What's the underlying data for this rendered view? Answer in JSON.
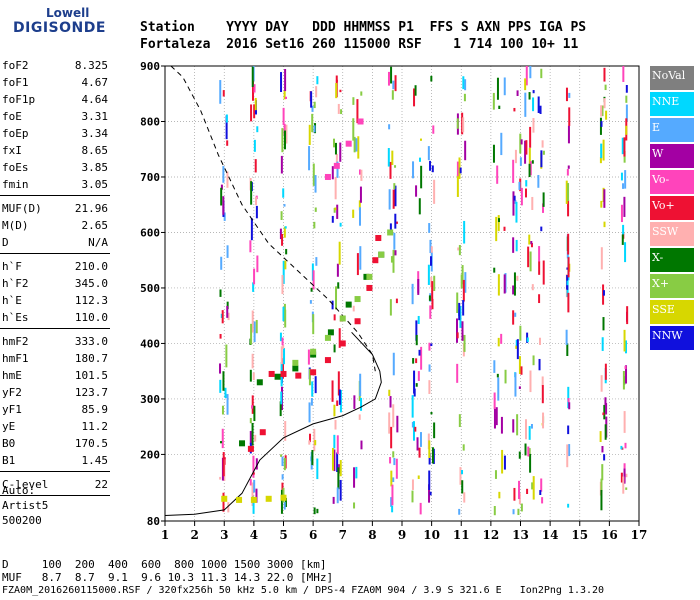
{
  "logo": {
    "line1": "Lowell",
    "line2": "DIGISONDE"
  },
  "header": {
    "row1": "Station    YYYY DAY   DDD HHMMSS P1  FFS S AXN PPS IGA PS",
    "row2": "Fortaleza  2016 Set16 260 115000 RSF    1 714 100 10+ 11"
  },
  "params": {
    "group1": [
      {
        "k": "foF2",
        "v": "8.325"
      },
      {
        "k": "foF1",
        "v": "4.67"
      },
      {
        "k": "foF1p",
        "v": "4.64"
      },
      {
        "k": "foE",
        "v": "3.31"
      },
      {
        "k": "foEp",
        "v": "3.34"
      },
      {
        "k": "fxI",
        "v": "8.65"
      },
      {
        "k": "foEs",
        "v": "3.85"
      },
      {
        "k": "fmin",
        "v": "3.05"
      }
    ],
    "group2": [
      {
        "k": "MUF(D)",
        "v": "21.96"
      },
      {
        "k": "M(D)",
        "v": "2.65"
      },
      {
        "k": "D",
        "v": "N/A"
      }
    ],
    "group3": [
      {
        "k": "h`F",
        "v": "210.0"
      },
      {
        "k": "h`F2",
        "v": "345.0"
      },
      {
        "k": "h`E",
        "v": "112.3"
      },
      {
        "k": "h`Es",
        "v": "110.0"
      }
    ],
    "group4": [
      {
        "k": "hmF2",
        "v": "333.0"
      },
      {
        "k": "hmF1",
        "v": "180.7"
      },
      {
        "k": "hmE",
        "v": "101.5"
      },
      {
        "k": "yF2",
        "v": "123.7"
      },
      {
        "k": "yF1",
        "v": "85.9"
      },
      {
        "k": "yE",
        "v": "11.2"
      },
      {
        "k": "B0",
        "v": "170.5"
      },
      {
        "k": "B1",
        "v": "1.45"
      }
    ],
    "group5": [
      {
        "k": "C-level",
        "v": "22"
      }
    ],
    "auto_lines": [
      "Auto:",
      "Artist5",
      "500200"
    ]
  },
  "legend": [
    {
      "label": "NoVal",
      "color": "#7f7f7f"
    },
    {
      "label": "NNE",
      "color": "#00d8ff"
    },
    {
      "label": "E",
      "color": "#55aaff"
    },
    {
      "label": "W",
      "color": "#a300a3"
    },
    {
      "label": "Vo-",
      "color": "#ff44bb"
    },
    {
      "label": "Vo+",
      "color": "#ee1133"
    },
    {
      "label": "SSW",
      "color": "#ffb0b0"
    },
    {
      "label": "X-",
      "color": "#007700"
    },
    {
      "label": "X+",
      "color": "#88cc44"
    },
    {
      "label": "SSE",
      "color": "#d7d700"
    },
    {
      "label": "NNW",
      "color": "#1010dd"
    }
  ],
  "footer": {
    "line1": "D     100  200  400  600  800 1000 1500 3000 [km]",
    "line2": "MUF   8.7  8.7  9.1  9.6 10.3 11.3 14.3 22.0 [MHz]",
    "line3": "FZA0M_2016260115000.RSF / 320fx256h 50 kHz 5.0 km / DPS-4 FZA0M 904 / 3.9 S 321.6 E   Ion2Png 1.3.20"
  },
  "chart_data": {
    "type": "scatter",
    "xlim": [
      1,
      17
    ],
    "ylim": [
      80,
      900
    ],
    "xticks": [
      1,
      2,
      3,
      4,
      5,
      6,
      7,
      8,
      9,
      10,
      11,
      12,
      13,
      14,
      15,
      16,
      17
    ],
    "yticks": [
      80,
      200,
      300,
      400,
      500,
      600,
      700,
      800,
      900
    ],
    "grid": true,
    "traces": [
      {
        "name": "X-",
        "color": "#007700",
        "x": [
          3.6,
          4.2,
          4.8,
          5.4,
          6.0,
          6.6,
          7.2,
          7.8,
          8.3
        ],
        "y": [
          220,
          330,
          340,
          355,
          380,
          420,
          470,
          520,
          560
        ]
      },
      {
        "name": "Vo+",
        "color": "#ee1133",
        "x": [
          3.9,
          4.3,
          4.6,
          5.0,
          5.5,
          6.0,
          6.5,
          7.0,
          7.5,
          7.9,
          8.1,
          8.2
        ],
        "y": [
          210,
          240,
          345,
          345,
          342,
          348,
          370,
          400,
          440,
          500,
          550,
          590
        ]
      },
      {
        "name": "X+",
        "color": "#88cc44",
        "x": [
          5.4,
          6.0,
          6.5,
          7.0,
          7.5,
          7.9,
          8.3,
          8.6
        ],
        "y": [
          365,
          385,
          410,
          445,
          480,
          520,
          560,
          600
        ]
      },
      {
        "name": "Vo-",
        "color": "#ff44bb",
        "x": [
          6.5,
          6.8,
          7.2,
          7.6
        ],
        "y": [
          700,
          720,
          760,
          800
        ]
      },
      {
        "name": "SSE",
        "color": "#d7d700",
        "x": [
          3.0,
          3.5,
          4.0,
          4.5,
          5.0
        ],
        "y": [
          120,
          118,
          118,
          120,
          122
        ]
      }
    ],
    "profile_solid": {
      "x": [
        1.0,
        2.0,
        3.0,
        3.6,
        4.2,
        5.0,
        6.0,
        7.0,
        7.6,
        8.1,
        8.3,
        8.25,
        8.0,
        7.3
      ],
      "y": [
        90,
        92,
        100,
        130,
        190,
        230,
        255,
        270,
        285,
        300,
        330,
        350,
        380,
        420
      ]
    },
    "profile_dashed": {
      "x": [
        1.2,
        1.6,
        2.2,
        2.8,
        3.6,
        4.5,
        5.5,
        6.5,
        7.5,
        8.0,
        8.1
      ],
      "y": [
        900,
        880,
        820,
        740,
        650,
        580,
        530,
        480,
        420,
        380,
        350
      ]
    }
  }
}
